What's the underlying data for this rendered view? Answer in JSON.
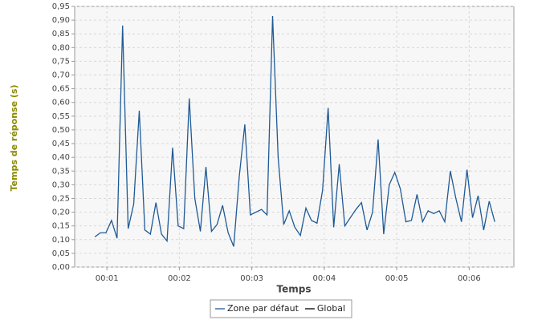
{
  "chart_data": {
    "type": "line",
    "x_label": "Temps",
    "y_label": "Temps de réponse (s)",
    "x": [
      50,
      54.6,
      59.2,
      63.8,
      68.4,
      73,
      77.6,
      82.2,
      86.8,
      91.4,
      96,
      100.6,
      105.2,
      109.8,
      114.4,
      119,
      123.6,
      128.2,
      132.8,
      137.4,
      142,
      146.6,
      151.2,
      155.8,
      160.4,
      165,
      169.6,
      174.2,
      178.8,
      183.4,
      188,
      192.6,
      197.2,
      201.8,
      206.4,
      211,
      215.6,
      220.2,
      224.8,
      229.4,
      234,
      238.6,
      243.2,
      247.8,
      252.4,
      257,
      261.6,
      266.2,
      270.8,
      275.4,
      280,
      284.6,
      289.2,
      293.8,
      298.4,
      303,
      307.6,
      312.2,
      316.8,
      321.4,
      326,
      330.6,
      335.2,
      339.8,
      344.4,
      349,
      353.6,
      358.2,
      362.8,
      367.4,
      372,
      376.6,
      381.2
    ],
    "series": [
      {
        "name": "Zone par défaut",
        "color": "#1f5a96",
        "values": [
          0.11,
          0.125,
          0.125,
          0.17,
          0.105,
          0.88,
          0.14,
          0.23,
          0.57,
          0.135,
          0.12,
          0.235,
          0.12,
          0.095,
          0.435,
          0.15,
          0.14,
          0.615,
          0.25,
          0.13,
          0.365,
          0.13,
          0.155,
          0.225,
          0.125,
          0.075,
          0.33,
          0.52,
          0.19,
          0.2,
          0.21,
          0.19,
          0.915,
          0.4,
          0.155,
          0.205,
          0.145,
          0.115,
          0.215,
          0.17,
          0.16,
          0.28,
          0.58,
          0.145,
          0.375,
          0.15,
          0.18,
          0.21,
          0.235,
          0.135,
          0.2,
          0.465,
          0.12,
          0.3,
          0.345,
          0.285,
          0.165,
          0.17,
          0.265,
          0.165,
          0.205,
          0.195,
          0.205,
          0.165,
          0.35,
          0.25,
          0.165,
          0.355,
          0.18,
          0.26,
          0.135,
          0.24,
          0.165
        ]
      },
      {
        "name": "Global",
        "color": "#000000",
        "values": [
          null,
          null,
          null,
          null,
          null,
          null,
          null,
          null,
          null,
          null,
          null,
          null,
          null,
          null,
          null,
          null,
          null,
          null,
          null,
          null,
          null,
          null,
          null,
          null,
          null,
          null,
          null,
          null,
          null,
          null,
          null,
          null,
          null,
          null,
          null,
          null,
          null,
          null,
          null,
          null,
          null,
          null,
          null,
          null,
          null,
          null,
          null,
          null,
          null,
          null,
          null,
          null,
          null,
          null,
          null,
          null,
          null,
          null,
          null,
          null,
          null,
          null,
          null,
          null,
          null,
          null,
          null,
          null,
          null,
          null,
          null,
          null,
          null
        ]
      }
    ],
    "xlim": [
      33.3,
      397
    ],
    "xticks": [
      {
        "value": 60,
        "label": "00:01"
      },
      {
        "value": 120,
        "label": "00:02"
      },
      {
        "value": 180,
        "label": "00:03"
      },
      {
        "value": 240,
        "label": "00:04"
      },
      {
        "value": 300,
        "label": "00:05"
      },
      {
        "value": 360,
        "label": "00:06"
      }
    ],
    "ylim": [
      0,
      0.95
    ],
    "yticks": [
      {
        "value": 0,
        "label": "0,00"
      },
      {
        "value": 0.05,
        "label": "0,05"
      },
      {
        "value": 0.1,
        "label": "0,10"
      },
      {
        "value": 0.15,
        "label": "0,15"
      },
      {
        "value": 0.2,
        "label": "0,20"
      },
      {
        "value": 0.25,
        "label": "0,25"
      },
      {
        "value": 0.3,
        "label": "0,30"
      },
      {
        "value": 0.35,
        "label": "0,35"
      },
      {
        "value": 0.4,
        "label": "0,40"
      },
      {
        "value": 0.45,
        "label": "0,45"
      },
      {
        "value": 0.5,
        "label": "0,50"
      },
      {
        "value": 0.55,
        "label": "0,55"
      },
      {
        "value": 0.6,
        "label": "0,60"
      },
      {
        "value": 0.65,
        "label": "0,65"
      },
      {
        "value": 0.7,
        "label": "0,70"
      },
      {
        "value": 0.75,
        "label": "0,75"
      },
      {
        "value": 0.8,
        "label": "0,80"
      },
      {
        "value": 0.85,
        "label": "0,85"
      },
      {
        "value": 0.9,
        "label": "0,90"
      },
      {
        "value": 0.95,
        "label": "0,95"
      }
    ],
    "grid": true,
    "legend": "bottom"
  }
}
